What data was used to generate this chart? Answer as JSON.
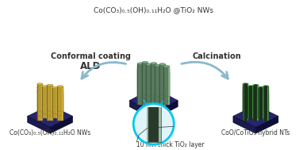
{
  "title_top": "Co(CO₃)₀.₅(OH)₀.₁₁H₂O @TiO₂ NWs",
  "label_left": "Co(CO₃)₀.₅(OH)₀.₁₁H₂O NWs",
  "label_right": "CoO/CoTiO₃ hybrid NTs",
  "label_left_arrow": "Conformal coating",
  "label_right_arrow": "Calcination",
  "label_ald": "ALD",
  "label_zoom": "10 nm-thick TiO₂ layer",
  "bg_color": "#ffffff",
  "base_color_dark": "#1a1a5e",
  "base_color_top": "#252570",
  "base_color_side": "#0d0d3a",
  "nw_left_main": "#b89a30",
  "nw_left_hi": "#d4b840",
  "nw_left_dark": "#7a6820",
  "nw_center_main": "#5a7a60",
  "nw_center_hi": "#7aaa80",
  "nw_center_dark": "#3a5a40",
  "nw_right_main": "#2d6e2d",
  "nw_right_hi": "#4a9a4a",
  "nw_right_dark": "#1a4a1a",
  "nw_right_hollow": "#1a2e1a",
  "arrow_fill": "#b8dce8",
  "arrow_edge": "#8ab8cc",
  "circle_color": "#00c8f0",
  "circle_fill": "#e0f4fa",
  "zoom_outer": "#5a6a5a",
  "zoom_shell": "#9ab8a8",
  "zoom_hollow": "#2a3a2a",
  "text_color": "#333333",
  "font_size_title": 6.5,
  "font_size_label": 5.5,
  "font_size_arrow_label": 7,
  "font_size_ald": 8.5,
  "font_size_zoom": 5.5
}
